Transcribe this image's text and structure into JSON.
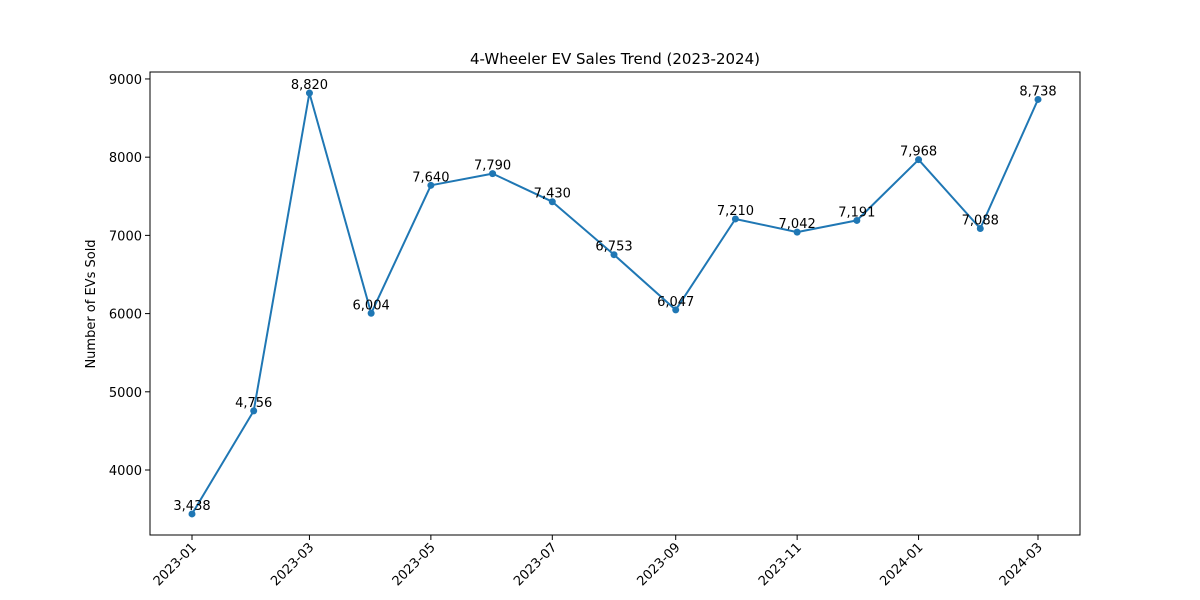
{
  "chart_data": {
    "type": "line",
    "title": "4-Wheeler EV Sales Trend (2023-2024)",
    "xlabel": "",
    "ylabel": "Number of EVs Sold",
    "x": [
      "2023-01-01",
      "2023-02-01",
      "2023-03-01",
      "2023-04-01",
      "2023-05-01",
      "2023-06-01",
      "2023-07-01",
      "2023-08-01",
      "2023-09-01",
      "2023-10-01",
      "2023-11-01",
      "2023-12-01",
      "2024-01-01",
      "2024-02-01",
      "2024-03-01"
    ],
    "values": [
      3438,
      4756,
      8820,
      6004,
      7640,
      7790,
      7430,
      6753,
      6047,
      7210,
      7042,
      7191,
      7968,
      7088,
      8738
    ],
    "data_labels": [
      "3,438",
      "4,756",
      "8,820",
      "6,004",
      "7,640",
      "7,790",
      "7,430",
      "6,753",
      "6,047",
      "7,210",
      "7,042",
      "7,191",
      "7,968",
      "7,088",
      "8,738"
    ],
    "x_tick_labels": [
      "2023-01",
      "2023-03",
      "2023-05",
      "2023-07",
      "2023-09",
      "2023-11",
      "2024-01",
      "2024-03"
    ],
    "y_tick_labels": [
      "4000",
      "5000",
      "6000",
      "7000",
      "8000",
      "9000"
    ],
    "y_ticks": [
      4000,
      5000,
      6000,
      7000,
      8000,
      9000
    ],
    "ylim": [
      3169,
      9089
    ],
    "grid": false,
    "legend": "none",
    "color": "#1f77b4"
  }
}
